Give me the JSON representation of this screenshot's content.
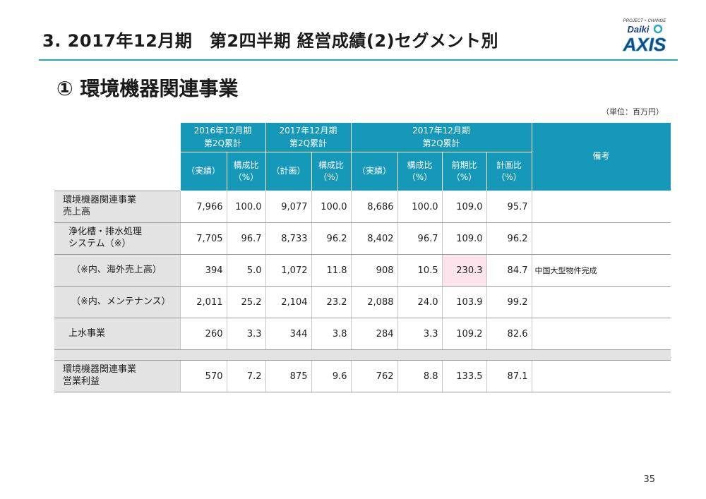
{
  "header": {
    "title": "3. 2017年12月期　第2四半期  経営成績(2)セグメント別",
    "subtitle": "①  環境機器関連事業",
    "unit": "（単位：百万円）"
  },
  "logo": {
    "tagline": "PROJECT × CHANGE",
    "brand": "Daiki",
    "name": "AXIS",
    "brand_color": "#1a3f8f",
    "accent_color": "#2aa6bd"
  },
  "table": {
    "groups": {
      "g2016": "2016年12月期\n第2Q累計",
      "g2017plan": "2017年12月期\n第2Q累計",
      "g2017": "2017年12月期\n第2Q累計",
      "note": "備考"
    },
    "subheaders": {
      "a2016": "（実績）",
      "r2016": "構成比\n（%）",
      "p2017": "（計画）",
      "rp2017": "構成比\n（%）",
      "a2017": "（実績）",
      "r2017": "構成比\n（%）",
      "yoy": "前期比\n（%）",
      "vsplan": "計画比\n（%）"
    },
    "rows": [
      {
        "label": "環境機器関連事業\n売上高",
        "values": [
          "7,966",
          "100.0",
          "9,077",
          "100.0",
          "8,686",
          "100.0",
          "109.0",
          "95.7"
        ],
        "note": ""
      },
      {
        "label": "浄化槽・排水処理\nシステム（※）",
        "values": [
          "7,705",
          "96.7",
          "8,733",
          "96.2",
          "8,402",
          "96.7",
          "109.0",
          "96.2"
        ],
        "note": ""
      },
      {
        "label": "（※内、海外売上高）",
        "values": [
          "394",
          "5.0",
          "1,072",
          "11.8",
          "908",
          "10.5",
          "230.3",
          "84.7"
        ],
        "note": "中国大型物件完成"
      },
      {
        "label": "（※内、メンテナンス）",
        "values": [
          "2,011",
          "25.2",
          "2,104",
          "23.2",
          "2,088",
          "24.0",
          "103.9",
          "99.2"
        ],
        "note": ""
      },
      {
        "label": "上水事業",
        "values": [
          "260",
          "3.3",
          "344",
          "3.8",
          "284",
          "3.3",
          "109.2",
          "82.6"
        ],
        "note": ""
      }
    ],
    "profit_row": {
      "label": "環境機器関連事業\n営業利益",
      "values": [
        "570",
        "7.2",
        "875",
        "9.6",
        "762",
        "8.8",
        "133.5",
        "87.1"
      ],
      "note": ""
    },
    "highlight_color": "#fde4ec"
  },
  "page_number": "35"
}
